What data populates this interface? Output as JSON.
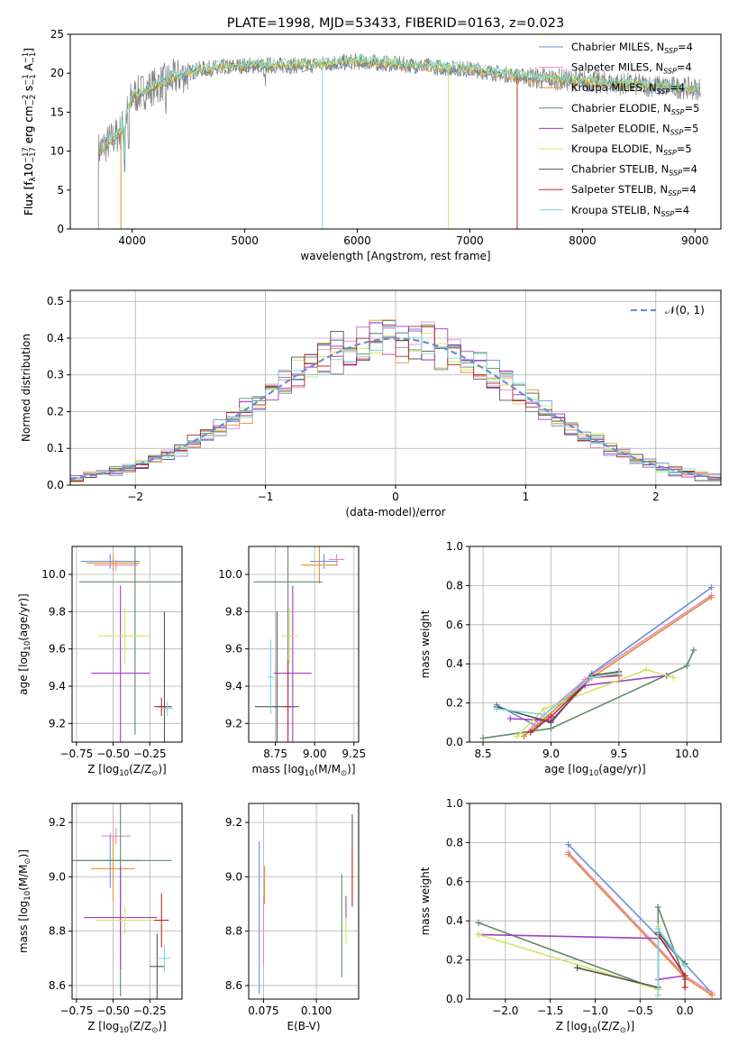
{
  "colors": [
    "#6A8FD6",
    "#E58AC8",
    "#E39230",
    "#628C6C",
    "#A63CC6",
    "#D3E565",
    "#555555",
    "#C0282D",
    "#7ED8D8"
  ],
  "legend_names": [
    [
      "Chabrier MILES, N",
      "SSP",
      "=4"
    ],
    [
      "Salpeter MILES, N",
      "SSP",
      "=4"
    ],
    [
      "Kroupa MILES, N",
      "SSP",
      "=4"
    ],
    [
      "Chabrier ELODIE, N",
      "SSP",
      "=5"
    ],
    [
      "Salpeter ELODIE, N",
      "SSP",
      "=5"
    ],
    [
      "Kroupa ELODIE, N",
      "SSP",
      "=5"
    ],
    [
      "Chabrier STELIB, N",
      "SSP",
      "=4"
    ],
    [
      "Salpeter STELIB, N",
      "SSP",
      "=4"
    ],
    [
      "Kroupa STELIB, N",
      "SSP",
      "=4"
    ]
  ],
  "chart_data": [
    {
      "id": "spectrum",
      "type": "line",
      "title": "PLATE=1998, MJD=53433, FIBERID=0163, z=0.023",
      "xlabel": "wavelength [Angstrom, rest frame]",
      "ylabel": [
        "Flux [f",
        "λ",
        "10",
        "−17",
        " erg cm",
        "−2",
        " s",
        "−1",
        " A",
        "−1",
        "]"
      ],
      "xlim": [
        3450,
        9230
      ],
      "ylim": [
        0,
        25
      ],
      "xticks": [
        4000,
        5000,
        6000,
        7000,
        8000,
        9000
      ],
      "yticks": [
        0,
        5,
        10,
        15,
        20,
        25
      ],
      "grid": false,
      "legend": "top-right",
      "series_note_values": [
        {
          "x": 3700,
          "y": 10
        },
        {
          "x": 3900,
          "y": 12.5
        },
        {
          "x": 4000,
          "y": 17
        },
        {
          "x": 4300,
          "y": 19
        },
        {
          "x": 4600,
          "y": 20.5
        },
        {
          "x": 5000,
          "y": 21
        },
        {
          "x": 5500,
          "y": 21
        },
        {
          "x": 6000,
          "y": 21.5
        },
        {
          "x": 6500,
          "y": 21
        },
        {
          "x": 7000,
          "y": 20.5
        },
        {
          "x": 7500,
          "y": 19.5
        },
        {
          "x": 8000,
          "y": 19
        },
        {
          "x": 8500,
          "y": 18.5
        },
        {
          "x": 9000,
          "y": 18
        }
      ]
    },
    {
      "id": "residuals",
      "type": "bar",
      "xlabel": "(data-model)/error",
      "ylabel": "Normed distribution",
      "xlim": [
        -2.5,
        2.5
      ],
      "ylim": [
        0,
        0.53
      ],
      "xticks": [
        -2,
        -1,
        0,
        1,
        2
      ],
      "yticks": [
        0,
        0.1,
        0.2,
        0.3,
        0.4,
        0.5
      ],
      "grid": true,
      "legend": "top-right",
      "legend_label": "𝒩(0, 1)",
      "bin_width": 0.1
    },
    {
      "id": "age_vs_Z",
      "type": "scatter",
      "xlabel": [
        "Z [log",
        "10",
        "(Z/Z",
        "⊙",
        ")]"
      ],
      "ylabel": [
        "age  [log",
        "10",
        "(age/yr)]"
      ],
      "xlim": [
        -0.78,
        -0.03
      ],
      "ylim": [
        9.1,
        10.15
      ],
      "xticks": [
        -0.75,
        -0.5,
        -0.25
      ],
      "yticks": [
        9.2,
        9.4,
        9.6,
        9.8,
        10.0
      ],
      "grid": true,
      "points": [
        {
          "x": -0.52,
          "y": 10.07,
          "xerr": 0.2,
          "yerr": 0.04
        },
        {
          "x": -0.48,
          "y": 10.05,
          "xerr": 0.15,
          "yerr": 0.03
        },
        {
          "x": -0.5,
          "y": 10.06,
          "xerr": 0.18,
          "yerr": 0.04
        },
        {
          "x": -0.35,
          "y": 9.96,
          "xerr": 0.38,
          "yerr": 0.82
        },
        {
          "x": -0.45,
          "y": 9.47,
          "xerr": 0.2,
          "yerr": 0.47
        },
        {
          "x": -0.42,
          "y": 9.67,
          "xerr": 0.18,
          "yerr": 0.15
        },
        {
          "x": -0.15,
          "y": 9.29,
          "xerr": 0.05,
          "yerr": 0.51
        },
        {
          "x": -0.17,
          "y": 9.29,
          "xerr": 0.05,
          "yerr": 0.05
        },
        {
          "x": -0.13,
          "y": 9.28,
          "xerr": 0.04,
          "yerr": 0.04
        }
      ]
    },
    {
      "id": "age_vs_mass",
      "type": "scatter",
      "xlabel": [
        "mass [log",
        "10",
        "(M/M",
        "⊙",
        ")]"
      ],
      "ylabel": "",
      "xlim": [
        8.58,
        9.28
      ],
      "ylim": [
        9.1,
        10.15
      ],
      "xticks": [
        8.75,
        9.0,
        9.25
      ],
      "yticks": [
        9.2,
        9.4,
        9.6,
        9.8,
        10.0
      ],
      "grid": true,
      "points": [
        {
          "x": 9.06,
          "y": 10.07,
          "xerr": 0.09,
          "yerr": 0.04
        },
        {
          "x": 9.14,
          "y": 10.08,
          "xerr": 0.05,
          "yerr": 0.03
        },
        {
          "x": 9.03,
          "y": 10.05,
          "xerr": 0.12,
          "yerr": 0.1
        },
        {
          "x": 8.83,
          "y": 9.96,
          "xerr": 0.22,
          "yerr": 0.82
        },
        {
          "x": 8.86,
          "y": 9.47,
          "xerr": 0.12,
          "yerr": 0.47
        },
        {
          "x": 8.84,
          "y": 9.67,
          "xerr": 0.05,
          "yerr": 0.15
        },
        {
          "x": 8.76,
          "y": 9.29,
          "xerr": 0.14,
          "yerr": 0.51
        },
        {
          "x": 8.83,
          "y": 9.29,
          "xerr": 0.02,
          "yerr": 0.25
        },
        {
          "x": 8.72,
          "y": 9.45,
          "xerr": 0.02,
          "yerr": 0.2
        }
      ]
    },
    {
      "id": "weight_vs_age",
      "type": "line",
      "xlabel": [
        "age  [log",
        "10",
        "(age/yr)]"
      ],
      "ylabel": "mass weight",
      "xlim": [
        8.4,
        10.25
      ],
      "ylim": [
        0,
        1.0
      ],
      "xticks": [
        8.5,
        9.0,
        9.5,
        10.0
      ],
      "yticks": [
        0,
        0.2,
        0.4,
        0.6,
        0.8,
        1.0
      ],
      "grid": true,
      "series": [
        {
          "x": [
            8.6,
            8.9,
            9.3,
            10.18
          ],
          "y": [
            0.19,
            0.08,
            0.35,
            0.79
          ]
        },
        {
          "x": [
            8.8,
            8.9,
            9.25,
            10.18
          ],
          "y": [
            0.03,
            0.11,
            0.32,
            0.75
          ]
        },
        {
          "x": [
            8.8,
            8.95,
            9.3,
            10.18
          ],
          "y": [
            0.03,
            0.12,
            0.33,
            0.74
          ]
        },
        {
          "x": [
            8.5,
            9.0,
            10.0,
            10.05
          ],
          "y": [
            0.02,
            0.07,
            0.39,
            0.47
          ]
        },
        {
          "x": [
            8.7,
            9.0,
            9.25,
            9.85
          ],
          "y": [
            0.12,
            0.11,
            0.29,
            0.34
          ]
        },
        {
          "x": [
            8.75,
            8.95,
            9.7,
            9.9
          ],
          "y": [
            0.03,
            0.17,
            0.37,
            0.33
          ]
        },
        {
          "x": [
            8.6,
            9.0,
            9.3,
            9.5
          ],
          "y": [
            0.18,
            0.1,
            0.34,
            0.36
          ]
        },
        {
          "x": [
            8.85,
            9.0,
            9.3,
            9.5
          ],
          "y": [
            0.05,
            0.13,
            0.33,
            0.34
          ]
        },
        {
          "x": [
            8.6,
            8.95,
            9.3,
            9.5
          ],
          "y": [
            0.17,
            0.14,
            0.33,
            0.35
          ]
        }
      ]
    },
    {
      "id": "mass_vs_Z",
      "type": "scatter",
      "xlabel": [
        "Z [log",
        "10",
        "(Z/Z",
        "⊙",
        ")]"
      ],
      "ylabel": [
        "mass [log",
        "10",
        "(M/M",
        "⊙",
        ")]"
      ],
      "xlim": [
        -0.78,
        -0.03
      ],
      "ylim": [
        8.55,
        9.27
      ],
      "xticks": [
        -0.75,
        -0.5,
        -0.25
      ],
      "yticks": [
        8.6,
        8.8,
        9.0,
        9.2
      ],
      "grid": true,
      "points": [
        {
          "x": -0.52,
          "y": 9.06,
          "xerr": 0.22,
          "yerr": 0.1
        },
        {
          "x": -0.48,
          "y": 9.15,
          "xerr": 0.1,
          "yerr": 0.03
        },
        {
          "x": -0.5,
          "y": 9.03,
          "xerr": 0.15,
          "yerr": 0.12
        },
        {
          "x": -0.45,
          "y": 9.06,
          "xerr": 0.35,
          "yerr": 0.5
        },
        {
          "x": -0.45,
          "y": 8.85,
          "xerr": 0.25,
          "yerr": 0.19
        },
        {
          "x": -0.42,
          "y": 8.84,
          "xerr": 0.2,
          "yerr": 0.05
        },
        {
          "x": -0.2,
          "y": 8.67,
          "xerr": 0.05,
          "yerr": 0.12
        },
        {
          "x": -0.17,
          "y": 8.84,
          "xerr": 0.05,
          "yerr": 0.1
        },
        {
          "x": -0.15,
          "y": 8.7,
          "xerr": 0.04,
          "yerr": 0.05
        }
      ]
    },
    {
      "id": "mass_vs_ebv",
      "type": "scatter",
      "xlabel": "E(B-V)",
      "ylabel": "",
      "xlim": [
        0.068,
        0.12
      ],
      "ylim": [
        8.55,
        9.27
      ],
      "xticks": [
        0.075,
        0.1
      ],
      "yticks": [
        8.6,
        8.8,
        9.0,
        9.2
      ],
      "grid": true,
      "points": [
        {
          "x": 0.073,
          "y": 8.85,
          "yerr": 0.28
        },
        {
          "x": 0.075,
          "y": 8.8,
          "yerr": 0.13
        },
        {
          "x": 0.0755,
          "y": 8.97,
          "yerr": 0.07
        },
        {
          "x": 0.112,
          "y": 8.82,
          "yerr": 0.19
        },
        {
          "x": 0.114,
          "y": 8.88,
          "yerr": 0.05
        },
        {
          "x": 0.114,
          "y": 8.8,
          "yerr": 0.05
        },
        {
          "x": 0.117,
          "y": 9.06,
          "yerr": 0.17
        },
        {
          "x": 0.117,
          "y": 9.0,
          "yerr": 0.1
        }
      ]
    },
    {
      "id": "weight_vs_Z",
      "type": "line",
      "xlabel": [
        "Z [log",
        "10",
        "(Z/Z",
        "⊙",
        ")]"
      ],
      "ylabel": "mass weight",
      "xlim": [
        -2.4,
        0.4
      ],
      "ylim": [
        0,
        1.0
      ],
      "xticks": [
        -2.0,
        -1.5,
        -1.0,
        -0.5,
        0.0
      ],
      "yticks": [
        0,
        0.2,
        0.4,
        0.6,
        0.8,
        1.0
      ],
      "grid": true,
      "series": [
        {
          "x": [
            -1.3,
            0.0,
            0.3
          ],
          "y": [
            0.79,
            0.18,
            0.03
          ]
        },
        {
          "x": [
            -1.3,
            0.0,
            0.3
          ],
          "y": [
            0.75,
            0.12,
            0.03
          ]
        },
        {
          "x": [
            -1.3,
            0.0,
            0.3
          ],
          "y": [
            0.74,
            0.11,
            0.02
          ]
        },
        {
          "x": [
            -2.3,
            -0.3,
            -0.3,
            0.0
          ],
          "y": [
            0.39,
            0.05,
            0.47,
            0.1
          ]
        },
        {
          "x": [
            -2.3,
            -0.3,
            -0.3,
            0.0
          ],
          "y": [
            0.33,
            0.31,
            0.1,
            0.12
          ]
        },
        {
          "x": [
            -2.3,
            -0.3,
            -0.3
          ],
          "y": [
            0.33,
            0.05,
            0.37
          ]
        },
        {
          "x": [
            -1.2,
            -0.3,
            -0.3,
            0.0
          ],
          "y": [
            0.16,
            0.06,
            0.34,
            0.18
          ]
        },
        {
          "x": [
            -0.3,
            0.0,
            0.0
          ],
          "y": [
            0.33,
            0.12,
            0.06
          ]
        },
        {
          "x": [
            -0.3,
            -0.3,
            0.0
          ],
          "y": [
            0.02,
            0.36,
            0.17
          ]
        }
      ]
    }
  ]
}
